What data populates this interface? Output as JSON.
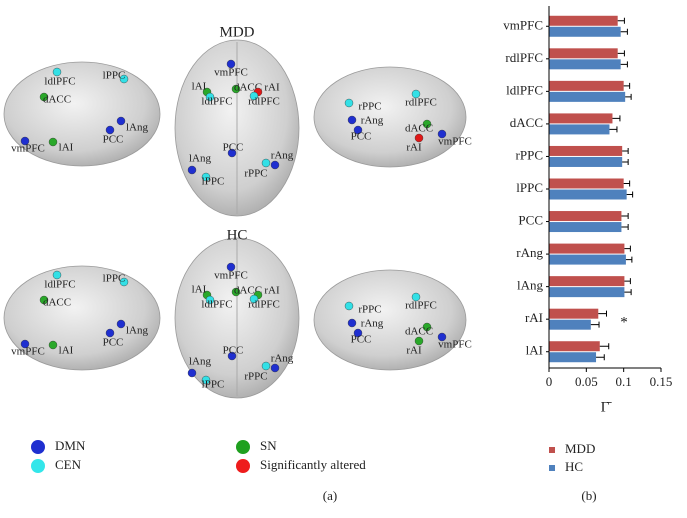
{
  "panel_a": {
    "groups": [
      {
        "title": "MDD",
        "views": [
          [
            {
              "label": "ldlPFC",
              "color": "#33e0e6"
            },
            {
              "label": "lPPC",
              "color": "#33e0e6"
            },
            {
              "label": "dACC",
              "color": "#2aa82a"
            },
            {
              "label": "lAng",
              "color": "#1f2fd0"
            },
            {
              "label": "PCC",
              "color": "#1f2fd0"
            },
            {
              "label": "vmPFC",
              "color": "#1f2fd0"
            },
            {
              "label": "lAI",
              "color": "#2aa82a"
            }
          ],
          [
            {
              "label": "vmPFC",
              "color": "#1f2fd0"
            },
            {
              "label": "lAI",
              "color": "#2aa82a"
            },
            {
              "label": "dACC",
              "color": "#2aa82a"
            },
            {
              "label": "rAI",
              "color": "#e01818"
            },
            {
              "label": "ldlPFC",
              "color": "#33e0e6"
            },
            {
              "label": "rdlPFC",
              "color": "#33e0e6"
            },
            {
              "label": "PCC",
              "color": "#1f2fd0"
            },
            {
              "label": "lAng",
              "color": "#1f2fd0"
            },
            {
              "label": "rAng",
              "color": "#1f2fd0"
            },
            {
              "label": "lPPC",
              "color": "#33e0e6"
            },
            {
              "label": "rPPC",
              "color": "#33e0e6"
            }
          ],
          [
            {
              "label": "rPPC",
              "color": "#33e0e6"
            },
            {
              "label": "rdlPFC",
              "color": "#33e0e6"
            },
            {
              "label": "rAng",
              "color": "#1f2fd0"
            },
            {
              "label": "PCC",
              "color": "#1f2fd0"
            },
            {
              "label": "dACC",
              "color": "#2aa82a"
            },
            {
              "label": "rAI",
              "color": "#e01818"
            },
            {
              "label": "vmPFC",
              "color": "#1f2fd0"
            }
          ]
        ]
      },
      {
        "title": "HC",
        "views": [
          [
            {
              "label": "ldlPFC",
              "color": "#33e0e6"
            },
            {
              "label": "lPPC",
              "color": "#33e0e6"
            },
            {
              "label": "dACC",
              "color": "#2aa82a"
            },
            {
              "label": "lAng",
              "color": "#1f2fd0"
            },
            {
              "label": "PCC",
              "color": "#1f2fd0"
            },
            {
              "label": "vmPFC",
              "color": "#1f2fd0"
            },
            {
              "label": "lAI",
              "color": "#2aa82a"
            }
          ],
          [
            {
              "label": "vmPFC",
              "color": "#1f2fd0"
            },
            {
              "label": "lAI",
              "color": "#2aa82a"
            },
            {
              "label": "dACC",
              "color": "#2aa82a"
            },
            {
              "label": "rAI",
              "color": "#2aa82a"
            },
            {
              "label": "ldlPFC",
              "color": "#33e0e6"
            },
            {
              "label": "rdlPFC",
              "color": "#33e0e6"
            },
            {
              "label": "PCC",
              "color": "#1f2fd0"
            },
            {
              "label": "lAng",
              "color": "#1f2fd0"
            },
            {
              "label": "rAng",
              "color": "#1f2fd0"
            },
            {
              "label": "lPPC",
              "color": "#33e0e6"
            },
            {
              "label": "rPPC",
              "color": "#33e0e6"
            }
          ],
          [
            {
              "label": "rPPC",
              "color": "#33e0e6"
            },
            {
              "label": "rdlPFC",
              "color": "#33e0e6"
            },
            {
              "label": "rAng",
              "color": "#1f2fd0"
            },
            {
              "label": "PCC",
              "color": "#1f2fd0"
            },
            {
              "label": "dACC",
              "color": "#2aa82a"
            },
            {
              "label": "rAI",
              "color": "#2aa82a"
            },
            {
              "label": "vmPFC",
              "color": "#1f2fd0"
            }
          ]
        ]
      }
    ],
    "legend": [
      {
        "name": "DMN",
        "color": "#1f2fd0"
      },
      {
        "name": "CEN",
        "color": "#33e6ea"
      },
      {
        "name": "SN",
        "color": "#1fa01f"
      },
      {
        "name": "Significantly altered",
        "color": "#ee1c1c"
      }
    ],
    "caption": "(a)"
  },
  "chart_data": {
    "type": "hbar",
    "categories": [
      "vmPFC",
      "rdlPFC",
      "ldlPFC",
      "dACC",
      "rPPC",
      "lPPC",
      "PCC",
      "rAng",
      "lAng",
      "rAI",
      "lAI"
    ],
    "series": [
      {
        "name": "MDD",
        "color": "#c0504d",
        "values": [
          0.092,
          0.092,
          0.1,
          0.085,
          0.098,
          0.1,
          0.097,
          0.101,
          0.101,
          0.066,
          0.068
        ],
        "errors": [
          0.009,
          0.009,
          0.008,
          0.01,
          0.008,
          0.008,
          0.009,
          0.008,
          0.008,
          0.011,
          0.012
        ]
      },
      {
        "name": "HC",
        "color": "#4f81bd",
        "values": [
          0.096,
          0.096,
          0.102,
          0.081,
          0.098,
          0.104,
          0.097,
          0.103,
          0.101,
          0.056,
          0.063
        ],
        "errors": [
          0.009,
          0.009,
          0.008,
          0.01,
          0.008,
          0.008,
          0.009,
          0.008,
          0.009,
          0.011,
          0.011
        ]
      }
    ],
    "xlim": [
      0,
      0.15
    ],
    "xticks": [
      0,
      0.05,
      0.1,
      0.15
    ],
    "xlabel": "Γ̄",
    "annotations": [
      {
        "category": "rAI",
        "text": "*"
      }
    ],
    "caption": "(b)"
  }
}
